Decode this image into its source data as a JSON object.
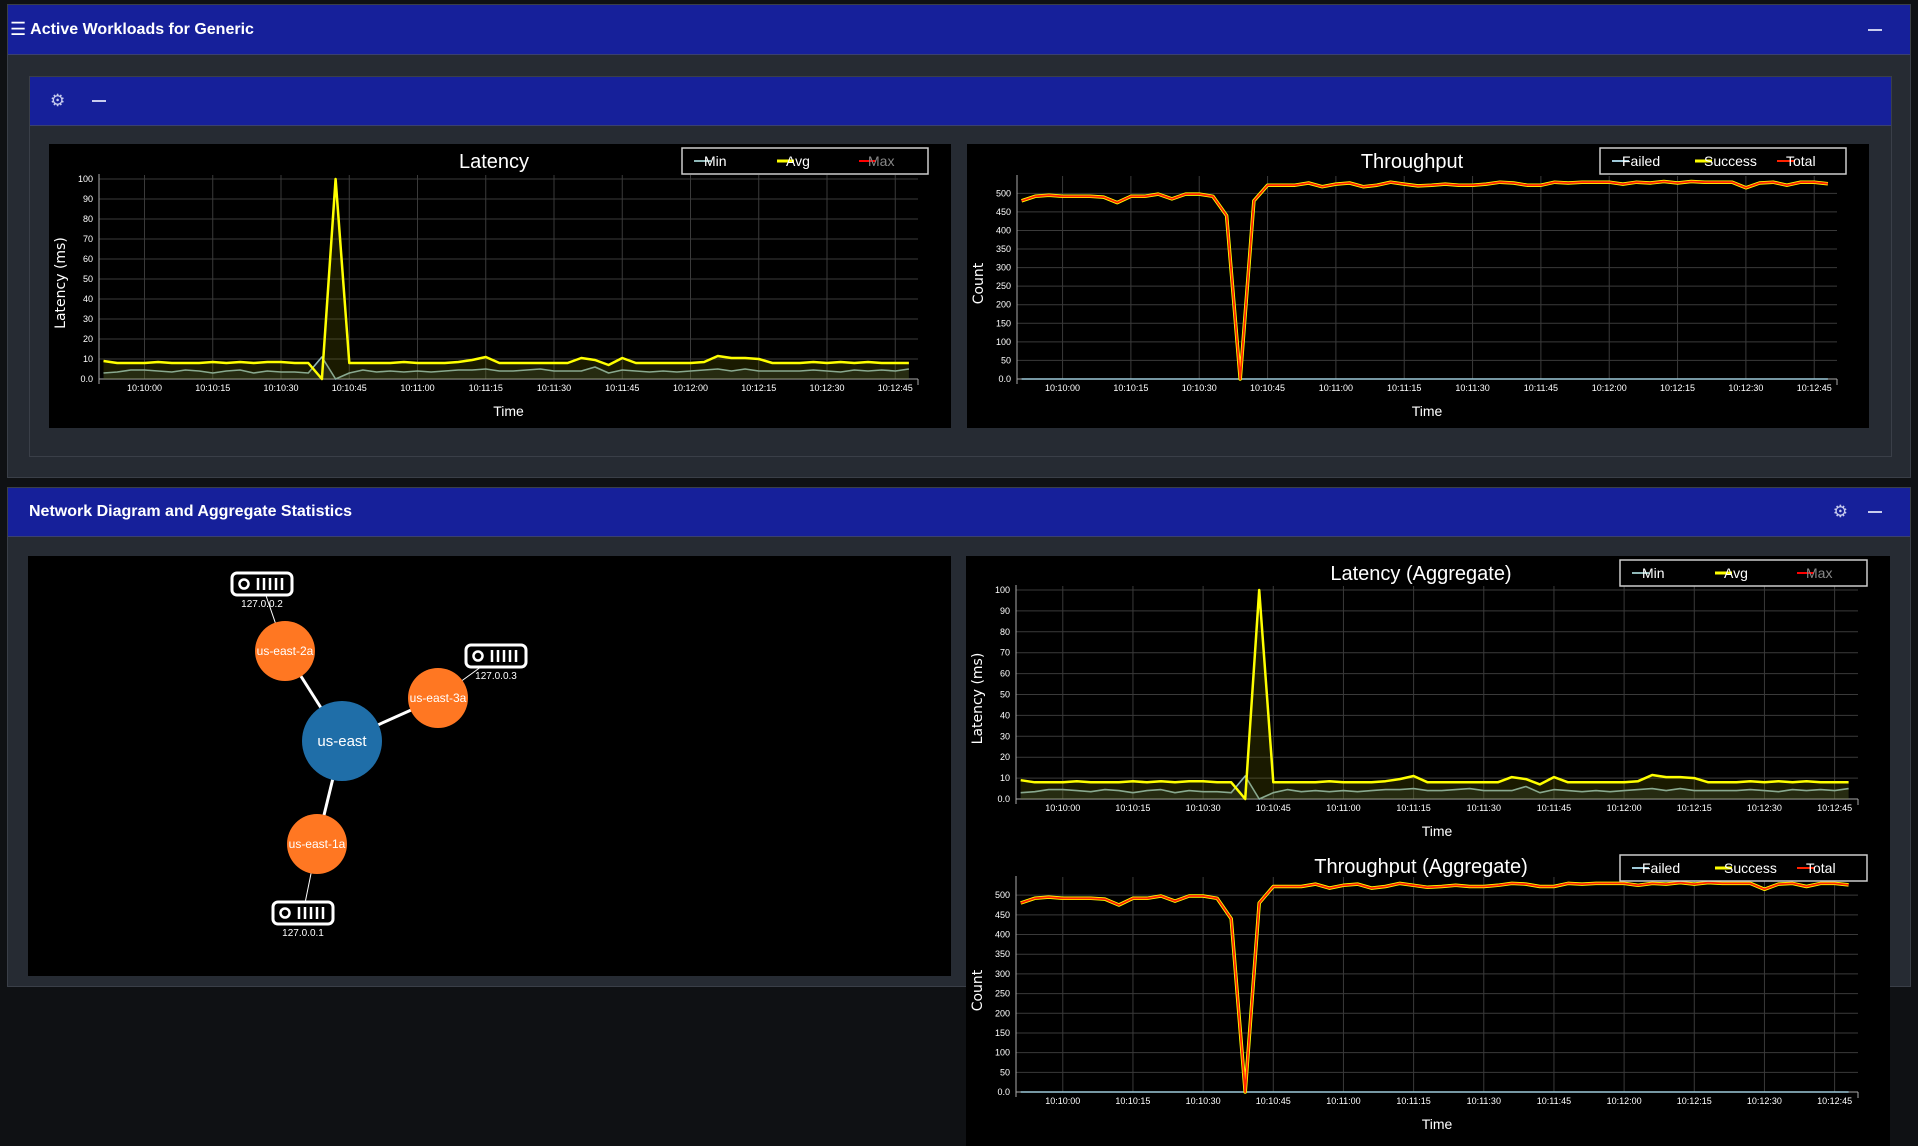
{
  "top_panel": {
    "title": "Active Workloads for Generic",
    "menu_icon": "hamburger-icon",
    "minimize_icon": "minus-icon"
  },
  "inner_card": {
    "settings_icon": "gear-icon",
    "minimize_icon": "minus-icon"
  },
  "bottom_panel": {
    "title": "Network Diagram and Aggregate Statistics",
    "settings_icon": "gear-icon",
    "minimize_icon": "minus-icon"
  },
  "colors": {
    "header": "#16209a",
    "panel": "#262b33",
    "zone_node": "#ff7722",
    "region_node": "#1f6ea8",
    "min": "#8fb8b8",
    "avg": "#ffff00",
    "max": "#ff0000",
    "failed": "#9ec9d9",
    "success": "#ffff00",
    "total": "#ff2200"
  },
  "network": {
    "region": {
      "label": "us-east"
    },
    "zones": [
      {
        "label": "us-east-2a",
        "server": "127.0.0.2"
      },
      {
        "label": "us-east-3a",
        "server": "127.0.0.3"
      },
      {
        "label": "us-east-1a",
        "server": "127.0.0.1"
      }
    ],
    "server_icon": "server-icon"
  },
  "chart_data": [
    {
      "id": "latency",
      "type": "line",
      "title": "Latency",
      "xlabel": "Time",
      "ylabel": "Latency (ms)",
      "xlim": [
        "10:09:50",
        "10:12:50"
      ],
      "ylim": [
        0,
        100
      ],
      "grid": true,
      "legend": "top-right",
      "yticks": [
        "0.0",
        "10",
        "20",
        "30",
        "40",
        "50",
        "60",
        "70",
        "80",
        "90",
        "100"
      ],
      "xticks": [
        "10:10:00",
        "10:10:15",
        "10:10:30",
        "10:10:45",
        "10:11:00",
        "10:11:15",
        "10:11:30",
        "10:11:45",
        "10:12:00",
        "10:12:15",
        "10:12:30",
        "10:12:45"
      ],
      "legend_items": [
        {
          "name": "Min",
          "color": "#8fb8b8",
          "hidden": false
        },
        {
          "name": "Avg",
          "color": "#ffff00",
          "hidden": false
        },
        {
          "name": "Max",
          "color": "#ff0000",
          "hidden": true
        }
      ],
      "series_ref": "latency"
    },
    {
      "id": "throughput",
      "type": "line",
      "title": "Throughput",
      "xlabel": "Time",
      "ylabel": "Count",
      "xlim": [
        "10:09:50",
        "10:12:50"
      ],
      "ylim": [
        0,
        536
      ],
      "grid": true,
      "legend": "top-right",
      "yticks": [
        "0.0",
        "50",
        "100",
        "150",
        "200",
        "250",
        "300",
        "350",
        "400",
        "450",
        "500"
      ],
      "xticks": [
        "10:10:00",
        "10:10:15",
        "10:10:30",
        "10:10:45",
        "10:11:00",
        "10:11:15",
        "10:11:30",
        "10:11:45",
        "10:12:00",
        "10:12:15",
        "10:12:30",
        "10:12:45"
      ],
      "legend_items": [
        {
          "name": "Failed",
          "color": "#9ec9d9",
          "hidden": false
        },
        {
          "name": "Success",
          "color": "#ffff00",
          "hidden": false
        },
        {
          "name": "Total",
          "color": "#ff2200",
          "hidden": false
        }
      ],
      "series_ref": "throughput"
    },
    {
      "id": "latency-aggregate",
      "type": "line",
      "title": "Latency (Aggregate)",
      "xlabel": "Time",
      "ylabel": "Latency (ms)",
      "xlim": [
        "10:09:50",
        "10:12:50"
      ],
      "ylim": [
        0,
        100
      ],
      "grid": true,
      "legend": "top-right",
      "yticks": [
        "0.0",
        "10",
        "20",
        "30",
        "40",
        "50",
        "60",
        "70",
        "80",
        "90",
        "100"
      ],
      "xticks": [
        "10:10:00",
        "10:10:15",
        "10:10:30",
        "10:10:45",
        "10:11:00",
        "10:11:15",
        "10:11:30",
        "10:11:45",
        "10:12:00",
        "10:12:15",
        "10:12:30",
        "10:12:45"
      ],
      "legend_items": [
        {
          "name": "Min",
          "color": "#8fb8b8",
          "hidden": false
        },
        {
          "name": "Avg",
          "color": "#ffff00",
          "hidden": false
        },
        {
          "name": "Max",
          "color": "#ff0000",
          "hidden": true
        }
      ],
      "series_ref": "latency"
    },
    {
      "id": "throughput-aggregate",
      "type": "line",
      "title": "Throughput (Aggregate)",
      "xlabel": "Time",
      "ylabel": "Count",
      "xlim": [
        "10:09:50",
        "10:12:50"
      ],
      "ylim": [
        0,
        536
      ],
      "grid": true,
      "legend": "top-right",
      "yticks": [
        "0.0",
        "50",
        "100",
        "150",
        "200",
        "250",
        "300",
        "350",
        "400",
        "450",
        "500"
      ],
      "xticks": [
        "10:10:00",
        "10:10:15",
        "10:10:30",
        "10:10:45",
        "10:11:00",
        "10:11:15",
        "10:11:30",
        "10:11:45",
        "10:12:00",
        "10:12:15",
        "10:12:30",
        "10:12:45"
      ],
      "legend_items": [
        {
          "name": "Failed",
          "color": "#9ec9d9",
          "hidden": false
        },
        {
          "name": "Success",
          "color": "#ffff00",
          "hidden": false
        },
        {
          "name": "Total",
          "color": "#ff2200",
          "hidden": false
        }
      ],
      "series_ref": "throughput"
    }
  ],
  "series": {
    "x": [
      "10:09:51",
      "10:09:54",
      "10:09:57",
      "10:10:00",
      "10:10:03",
      "10:10:06",
      "10:10:09",
      "10:10:12",
      "10:10:15",
      "10:10:18",
      "10:10:21",
      "10:10:24",
      "10:10:27",
      "10:10:30",
      "10:10:33",
      "10:10:36",
      "10:10:39",
      "10:10:42",
      "10:10:45",
      "10:10:48",
      "10:10:51",
      "10:10:54",
      "10:10:57",
      "10:11:00",
      "10:11:03",
      "10:11:06",
      "10:11:09",
      "10:11:12",
      "10:11:15",
      "10:11:18",
      "10:11:21",
      "10:11:24",
      "10:11:27",
      "10:11:30",
      "10:11:33",
      "10:11:36",
      "10:11:39",
      "10:11:42",
      "10:11:45",
      "10:11:48",
      "10:11:51",
      "10:11:54",
      "10:11:57",
      "10:12:00",
      "10:12:03",
      "10:12:06",
      "10:12:09",
      "10:12:12",
      "10:12:15",
      "10:12:18",
      "10:12:21",
      "10:12:24",
      "10:12:27",
      "10:12:30",
      "10:12:33",
      "10:12:36",
      "10:12:39",
      "10:12:42",
      "10:12:45",
      "10:12:48"
    ],
    "latency": {
      "Min": [
        3,
        3.5,
        4.5,
        4.5,
        4,
        3.5,
        4.5,
        4,
        3,
        4,
        4.5,
        3,
        4,
        3.5,
        3.5,
        3,
        11,
        0,
        3,
        4.5,
        3.5,
        4,
        3.5,
        4,
        3.5,
        4,
        4.5,
        4.5,
        5,
        4,
        4,
        4.5,
        5,
        4,
        4,
        4,
        6,
        3,
        4.5,
        4,
        3.5,
        4,
        3.5,
        4,
        4.5,
        5,
        4,
        5,
        4,
        4,
        4,
        4,
        4.5,
        4,
        3.5,
        4.5,
        4,
        4.5,
        4,
        5
      ],
      "Avg": [
        9,
        8,
        8,
        8,
        8.5,
        8,
        8,
        8,
        8.5,
        8,
        8.5,
        8,
        8.5,
        8.5,
        8,
        8,
        0,
        100,
        8,
        8,
        8,
        8,
        8.5,
        8,
        8,
        8,
        8.5,
        9.5,
        11,
        8,
        8,
        8,
        8,
        8,
        8,
        10.5,
        9.5,
        7,
        10.5,
        8,
        8,
        8,
        8,
        8,
        8.5,
        11.5,
        10.5,
        10.5,
        10,
        8,
        8,
        8,
        8.5,
        8,
        8.5,
        8,
        8.5,
        8,
        8,
        8
      ]
    },
    "throughput": {
      "Failed": [
        0,
        0,
        0,
        0,
        0,
        0,
        0,
        0,
        0,
        0,
        0,
        0,
        0,
        0,
        0,
        0,
        0,
        0,
        0,
        0,
        0,
        0,
        0,
        0,
        0,
        0,
        0,
        0,
        0,
        0,
        0,
        0,
        0,
        0,
        0,
        0,
        0,
        0,
        0,
        0,
        0,
        0,
        0,
        0,
        0,
        0,
        0,
        0,
        0,
        0,
        0,
        0,
        0,
        0,
        0,
        0,
        0,
        0,
        0,
        0
      ],
      "Success": [
        480,
        492,
        495,
        492,
        492,
        492,
        490,
        475,
        492,
        492,
        498,
        485,
        498,
        498,
        492,
        440,
        0,
        480,
        522,
        522,
        522,
        528,
        518,
        525,
        528,
        518,
        522,
        530,
        525,
        520,
        522,
        525,
        522,
        522,
        525,
        530,
        528,
        522,
        522,
        530,
        528,
        530,
        530,
        530,
        525,
        530,
        528,
        532,
        528,
        532,
        530,
        530,
        530,
        515,
        528,
        530,
        522,
        530,
        530,
        526
      ],
      "Total": [
        480,
        492,
        495,
        492,
        492,
        492,
        490,
        475,
        492,
        492,
        498,
        485,
        498,
        498,
        492,
        440,
        0,
        480,
        522,
        522,
        522,
        528,
        518,
        525,
        528,
        518,
        522,
        530,
        525,
        520,
        522,
        525,
        522,
        522,
        525,
        530,
        528,
        522,
        522,
        530,
        528,
        530,
        530,
        530,
        525,
        530,
        528,
        532,
        528,
        532,
        530,
        530,
        530,
        515,
        528,
        530,
        522,
        530,
        530,
        526
      ]
    }
  }
}
